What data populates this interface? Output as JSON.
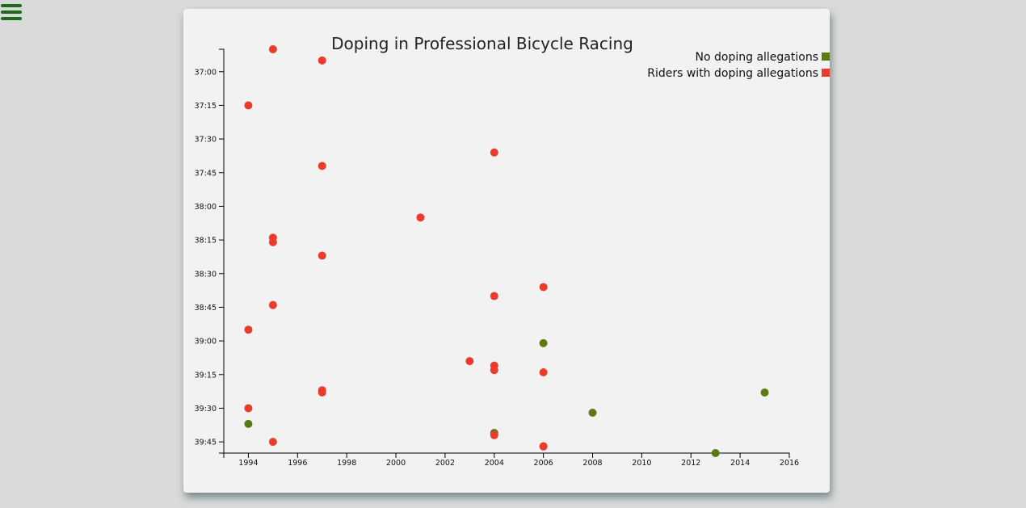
{
  "menu": {
    "icon": "hamburger-menu-icon"
  },
  "colors": {
    "clean": "#5b7a0f",
    "doping": "#ec3b2a",
    "menu": "#1e6b1e"
  },
  "legend": {
    "items": [
      {
        "label": "No doping allegations",
        "color": "#5b7a0f"
      },
      {
        "label": "Riders with doping allegations",
        "color": "#ec3b2a"
      }
    ]
  },
  "chart_data": {
    "type": "scatter",
    "title": "Doping in Professional Bicycle Racing",
    "xlabel": "",
    "ylabel": "",
    "xlim": [
      1993,
      2016
    ],
    "ylim": [
      "36:50",
      "39:50"
    ],
    "y_reversed": true,
    "x_ticks": [
      "1994",
      "1996",
      "1998",
      "2000",
      "2002",
      "2004",
      "2006",
      "2008",
      "2010",
      "2012",
      "2014",
      "2016"
    ],
    "y_ticks": [
      "37:00",
      "37:15",
      "37:30",
      "37:45",
      "38:00",
      "38:15",
      "38:30",
      "38:45",
      "39:00",
      "39:15",
      "39:30",
      "39:45"
    ],
    "legend_position": "top-right",
    "grid": false,
    "series": [
      {
        "name": "No doping allegations",
        "color": "#5b7a0f",
        "points": [
          {
            "x": 2006,
            "y": "39:01"
          },
          {
            "x": 2015,
            "y": "39:23"
          },
          {
            "x": 2008,
            "y": "39:32"
          },
          {
            "x": 1994,
            "y": "39:37"
          },
          {
            "x": 2004,
            "y": "39:41"
          },
          {
            "x": 2006,
            "y": "39:47"
          },
          {
            "x": 2013,
            "y": "39:50"
          }
        ]
      },
      {
        "name": "Riders with doping allegations",
        "color": "#ec3b2a",
        "points": [
          {
            "x": 1995,
            "y": "36:50"
          },
          {
            "x": 1997,
            "y": "36:55"
          },
          {
            "x": 1994,
            "y": "37:15"
          },
          {
            "x": 2004,
            "y": "37:36"
          },
          {
            "x": 1997,
            "y": "37:42"
          },
          {
            "x": 2001,
            "y": "38:05"
          },
          {
            "x": 1995,
            "y": "38:14"
          },
          {
            "x": 1995,
            "y": "38:16"
          },
          {
            "x": 1997,
            "y": "38:22"
          },
          {
            "x": 2006,
            "y": "38:36"
          },
          {
            "x": 2004,
            "y": "38:40"
          },
          {
            "x": 1995,
            "y": "38:44"
          },
          {
            "x": 1994,
            "y": "38:55"
          },
          {
            "x": 2003,
            "y": "39:09"
          },
          {
            "x": 2004,
            "y": "39:11"
          },
          {
            "x": 2004,
            "y": "39:13"
          },
          {
            "x": 2006,
            "y": "39:14"
          },
          {
            "x": 1997,
            "y": "39:22"
          },
          {
            "x": 1997,
            "y": "39:23"
          },
          {
            "x": 1994,
            "y": "39:30"
          },
          {
            "x": 2004,
            "y": "39:42"
          },
          {
            "x": 1995,
            "y": "39:45"
          },
          {
            "x": 2006,
            "y": "39:47"
          }
        ]
      }
    ]
  }
}
